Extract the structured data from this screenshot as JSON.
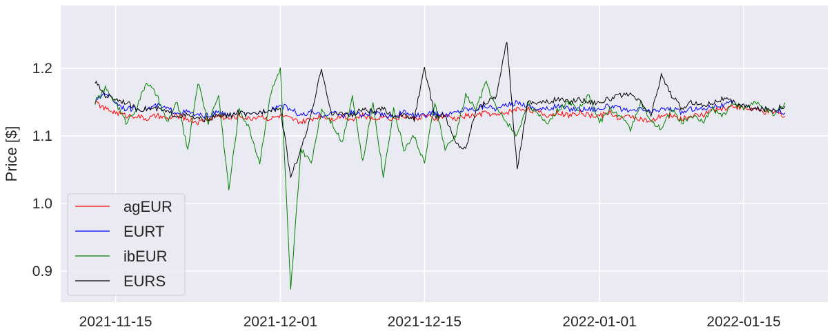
{
  "chart_data": {
    "type": "line",
    "title": "",
    "xlabel": "",
    "ylabel": "Price [$]",
    "xlim": [
      "2021-11-09T16:00",
      "2022-01-23T04:00"
    ],
    "ylim": [
      0.854,
      1.293
    ],
    "grid": true,
    "legend_placement": "lower-left",
    "x_ticks": [
      "2021-11-15",
      "2021-12-01",
      "2021-12-15",
      "2022-01-01",
      "2022-01-15"
    ],
    "y_ticks": [
      "0.9",
      "1.0",
      "1.1",
      "1.2"
    ],
    "x_start": "2021-11-13",
    "x_step": "1 day",
    "series": [
      {
        "name": "agEUR",
        "color": "#ff0000",
        "values": [
          1.15,
          1.14,
          1.135,
          1.13,
          1.13,
          1.125,
          1.13,
          1.125,
          1.13,
          1.125,
          1.12,
          1.125,
          1.13,
          1.125,
          1.13,
          1.125,
          1.13,
          1.125,
          1.13,
          1.125,
          1.12,
          1.125,
          1.13,
          1.125,
          1.13,
          1.125,
          1.13,
          1.125,
          1.13,
          1.125,
          1.13,
          1.125,
          1.13,
          1.125,
          1.13,
          1.125,
          1.13,
          1.13,
          1.135,
          1.13,
          1.135,
          1.14,
          1.14,
          1.135,
          1.13,
          1.135,
          1.13,
          1.135,
          1.13,
          1.13,
          1.135,
          1.125,
          1.13,
          1.125,
          1.12,
          1.13,
          1.13,
          1.125,
          1.13,
          1.13,
          1.14,
          1.14,
          1.145,
          1.14,
          1.14,
          1.135,
          1.135,
          1.13
        ]
      },
      {
        "name": "EURT",
        "color": "#0000ff",
        "values": [
          1.15,
          1.165,
          1.15,
          1.14,
          1.14,
          1.14,
          1.145,
          1.14,
          1.135,
          1.135,
          1.13,
          1.13,
          1.135,
          1.13,
          1.135,
          1.13,
          1.135,
          1.14,
          1.145,
          1.14,
          1.13,
          1.135,
          1.13,
          1.135,
          1.13,
          1.135,
          1.13,
          1.135,
          1.13,
          1.13,
          1.135,
          1.13,
          1.13,
          1.135,
          1.13,
          1.135,
          1.14,
          1.14,
          1.145,
          1.14,
          1.145,
          1.15,
          1.145,
          1.14,
          1.14,
          1.145,
          1.14,
          1.14,
          1.14,
          1.14,
          1.145,
          1.14,
          1.135,
          1.14,
          1.135,
          1.14,
          1.14,
          1.135,
          1.14,
          1.14,
          1.145,
          1.145,
          1.15,
          1.145,
          1.14,
          1.14,
          1.14,
          1.135
        ]
      },
      {
        "name": "ibEUR",
        "color": "#008000",
        "values": [
          1.15,
          1.17,
          1.15,
          1.12,
          1.14,
          1.18,
          1.16,
          1.12,
          1.15,
          1.08,
          1.18,
          1.12,
          1.16,
          1.02,
          1.14,
          1.11,
          1.06,
          1.16,
          1.2,
          0.87,
          1.08,
          1.06,
          1.14,
          1.12,
          1.09,
          1.16,
          1.06,
          1.15,
          1.04,
          1.14,
          1.08,
          1.1,
          1.06,
          1.15,
          1.08,
          1.1,
          1.16,
          1.14,
          1.18,
          1.14,
          1.12,
          1.1,
          1.15,
          1.13,
          1.12,
          1.14,
          1.15,
          1.14,
          1.16,
          1.12,
          1.14,
          1.13,
          1.11,
          1.15,
          1.12,
          1.11,
          1.14,
          1.12,
          1.13,
          1.12,
          1.14,
          1.13,
          1.15,
          1.14,
          1.15,
          1.14,
          1.13,
          1.15
        ]
      },
      {
        "name": "EURS",
        "color": "#000000",
        "values": [
          1.18,
          1.16,
          1.155,
          1.15,
          1.14,
          1.14,
          1.14,
          1.135,
          1.13,
          1.13,
          1.125,
          1.125,
          1.13,
          1.13,
          1.135,
          1.13,
          1.135,
          1.14,
          1.14,
          1.04,
          1.08,
          1.13,
          1.2,
          1.13,
          1.135,
          1.13,
          1.14,
          1.135,
          1.14,
          1.13,
          1.13,
          1.125,
          1.2,
          1.13,
          1.13,
          1.09,
          1.08,
          1.14,
          1.15,
          1.16,
          1.24,
          1.05,
          1.15,
          1.15,
          1.15,
          1.155,
          1.15,
          1.155,
          1.15,
          1.15,
          1.155,
          1.16,
          1.16,
          1.15,
          1.13,
          1.19,
          1.16,
          1.14,
          1.15,
          1.145,
          1.15,
          1.155,
          1.15,
          1.145,
          1.14,
          1.14,
          1.14,
          1.145
        ]
      }
    ]
  }
}
